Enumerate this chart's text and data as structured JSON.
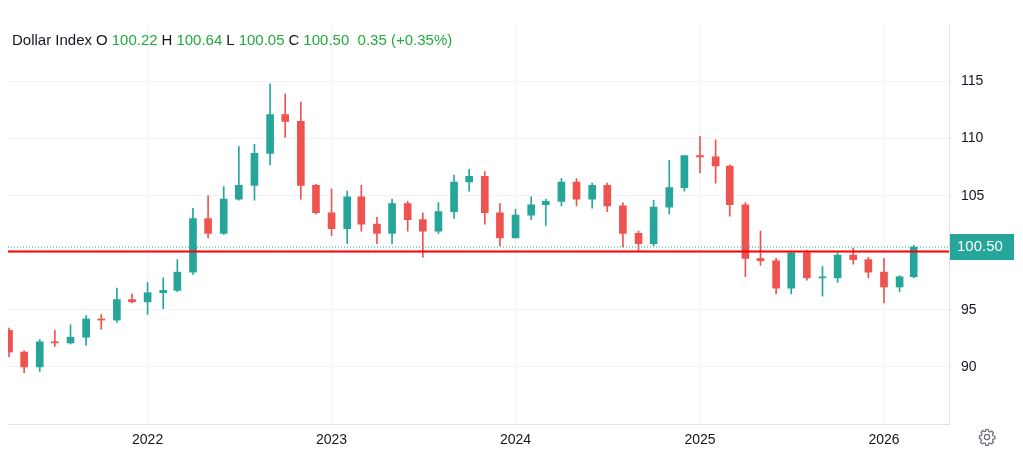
{
  "chart_data": {
    "type": "candlestick",
    "title": "Dollar Index",
    "annotations": [
      "O",
      "100.22",
      "H",
      "100.64",
      "L",
      "100.05",
      "C",
      "100.50  0.35 (+0.35%)"
    ],
    "x": [
      "2021-04",
      "2021-05",
      "2021-06",
      "2021-07",
      "2021-08",
      "2021-09",
      "2021-10",
      "2021-11",
      "2021-12",
      "2022-01",
      "2022-02",
      "2022-03",
      "2022-04",
      "2022-05",
      "2022-06",
      "2022-07",
      "2022-08",
      "2022-09",
      "2022-10",
      "2022-11",
      "2022-12",
      "2023-01",
      "2023-02",
      "2023-03",
      "2023-04",
      "2023-05",
      "2023-06",
      "2023-07",
      "2023-08",
      "2023-09",
      "2023-10",
      "2023-11",
      "2023-12",
      "2024-01",
      "2024-02",
      "2024-03",
      "2024-04",
      "2024-05",
      "2024-06",
      "2024-07",
      "2024-08",
      "2024-09",
      "2024-10",
      "2024-11",
      "2024-12",
      "2025-01",
      "2025-02",
      "2025-03",
      "2025-04",
      "2025-05",
      "2025-06",
      "2025-07",
      "2025-08",
      "2025-09",
      "2025-10",
      "2025-11",
      "2025-12",
      "2026-01",
      "2026-02",
      "2026-03"
    ],
    "ohlc": [
      [
        93.2,
        93.4,
        90.9,
        91.3
      ],
      [
        91.3,
        91.4,
        89.5,
        90.0
      ],
      [
        90.0,
        92.4,
        89.6,
        92.2
      ],
      [
        92.2,
        93.2,
        91.8,
        92.1
      ],
      [
        92.1,
        93.7,
        92.0,
        92.6
      ],
      [
        92.6,
        94.5,
        91.9,
        94.2
      ],
      [
        94.2,
        94.6,
        93.3,
        94.1
      ],
      [
        94.1,
        96.9,
        93.9,
        95.9
      ],
      [
        95.9,
        96.4,
        95.6,
        95.7
      ],
      [
        95.7,
        97.4,
        94.6,
        96.5
      ],
      [
        96.5,
        97.8,
        95.1,
        96.7
      ],
      [
        96.7,
        99.4,
        96.6,
        98.3
      ],
      [
        98.3,
        103.9,
        98.1,
        103.0
      ],
      [
        103.0,
        105.0,
        101.3,
        101.7
      ],
      [
        101.7,
        105.8,
        101.6,
        104.7
      ],
      [
        104.7,
        109.3,
        104.6,
        105.9
      ],
      [
        105.9,
        109.5,
        104.6,
        108.7
      ],
      [
        108.7,
        114.8,
        107.7,
        112.1
      ],
      [
        112.1,
        113.9,
        110.1,
        111.5
      ],
      [
        111.5,
        113.2,
        104.7,
        105.9
      ],
      [
        105.9,
        106.0,
        103.4,
        103.5
      ],
      [
        103.5,
        105.6,
        101.5,
        102.1
      ],
      [
        102.1,
        105.4,
        100.8,
        104.9
      ],
      [
        104.9,
        105.9,
        101.9,
        102.5
      ],
      [
        102.5,
        103.1,
        100.8,
        101.7
      ],
      [
        101.7,
        104.7,
        100.8,
        104.3
      ],
      [
        104.3,
        104.5,
        101.9,
        102.9
      ],
      [
        102.9,
        103.5,
        99.6,
        101.9
      ],
      [
        101.9,
        104.4,
        101.7,
        103.6
      ],
      [
        103.6,
        106.8,
        103.0,
        106.2
      ],
      [
        106.2,
        107.3,
        105.4,
        106.7
      ],
      [
        106.7,
        107.1,
        102.5,
        103.5
      ],
      [
        103.5,
        104.3,
        100.6,
        101.3
      ],
      [
        101.3,
        103.8,
        101.3,
        103.3
      ],
      [
        103.3,
        104.9,
        102.9,
        104.2
      ],
      [
        104.2,
        104.7,
        102.4,
        104.5
      ],
      [
        104.5,
        106.5,
        104.1,
        106.2
      ],
      [
        106.2,
        106.5,
        104.1,
        104.7
      ],
      [
        104.7,
        106.1,
        103.9,
        105.9
      ],
      [
        105.9,
        106.1,
        103.6,
        104.1
      ],
      [
        104.1,
        104.4,
        100.5,
        101.7
      ],
      [
        101.7,
        101.9,
        100.2,
        100.8
      ],
      [
        100.8,
        104.6,
        100.6,
        104.0
      ],
      [
        104.0,
        108.1,
        103.4,
        105.7
      ],
      [
        105.7,
        108.5,
        105.4,
        108.5
      ],
      [
        108.5,
        110.2,
        107.0,
        108.4
      ],
      [
        108.4,
        109.9,
        106.1,
        107.6
      ],
      [
        107.6,
        107.7,
        103.2,
        104.2
      ],
      [
        104.2,
        104.4,
        97.9,
        99.5
      ],
      [
        99.5,
        101.9,
        98.9,
        99.3
      ],
      [
        99.3,
        99.5,
        96.4,
        96.9
      ],
      [
        96.9,
        100.1,
        96.4,
        100.0
      ],
      [
        100.0,
        100.2,
        97.6,
        97.8
      ],
      [
        97.8,
        98.8,
        96.2,
        97.8
      ],
      [
        97.8,
        100.0,
        97.4,
        99.8
      ],
      [
        99.8,
        100.4,
        99.0,
        99.4
      ],
      [
        99.4,
        99.6,
        97.8,
        98.3
      ],
      [
        98.3,
        99.5,
        95.6,
        97.0
      ],
      [
        97.0,
        98.0,
        96.6,
        97.9
      ],
      [
        97.9,
        100.64,
        97.8,
        100.5
      ]
    ],
    "colors": [
      "#ef5350",
      "#ef5350",
      "#26a69a",
      "#ef5350",
      "#26a69a",
      "#26a69a",
      "#ef5350",
      "#26a69a",
      "#ef5350",
      "#26a69a",
      "#26a69a",
      "#26a69a",
      "#26a69a",
      "#ef5350",
      "#26a69a",
      "#26a69a",
      "#26a69a",
      "#26a69a",
      "#ef5350",
      "#ef5350",
      "#ef5350",
      "#ef5350",
      "#26a69a",
      "#ef5350",
      "#ef5350",
      "#26a69a",
      "#ef5350",
      "#ef5350",
      "#26a69a",
      "#26a69a",
      "#26a69a",
      "#ef5350",
      "#ef5350",
      "#26a69a",
      "#26a69a",
      "#26a69a",
      "#26a69a",
      "#ef5350",
      "#26a69a",
      "#ef5350",
      "#ef5350",
      "#ef5350",
      "#26a69a",
      "#26a69a",
      "#26a69a",
      "#ef5350",
      "#ef5350",
      "#ef5350",
      "#ef5350",
      "#ef5350",
      "#ef5350",
      "#26a69a",
      "#ef5350",
      "#26a69a",
      "#26a69a",
      "#ef5350",
      "#ef5350",
      "#ef5350",
      "#26a69a",
      "#26a69a"
    ],
    "xlim": [
      "2021-03-30",
      "2026-05-10"
    ],
    "xticks": [
      "2022",
      "2023",
      "2024",
      "2025",
      "2026"
    ],
    "ylim": [
      85,
      120
    ],
    "yticks": [
      90,
      95,
      {
        "value": 100,
        "label": null
      },
      105,
      110,
      115
    ],
    "ref_lines": [
      {
        "axis": "y",
        "value": 100.1,
        "color": "#ff0000",
        "line_style": "solid"
      },
      {
        "axis": "y",
        "value": 100.5,
        "label": "100.50",
        "color": "#26a69a",
        "line_style": "dotted"
      }
    ],
    "grid": true,
    "legend": false
  }
}
